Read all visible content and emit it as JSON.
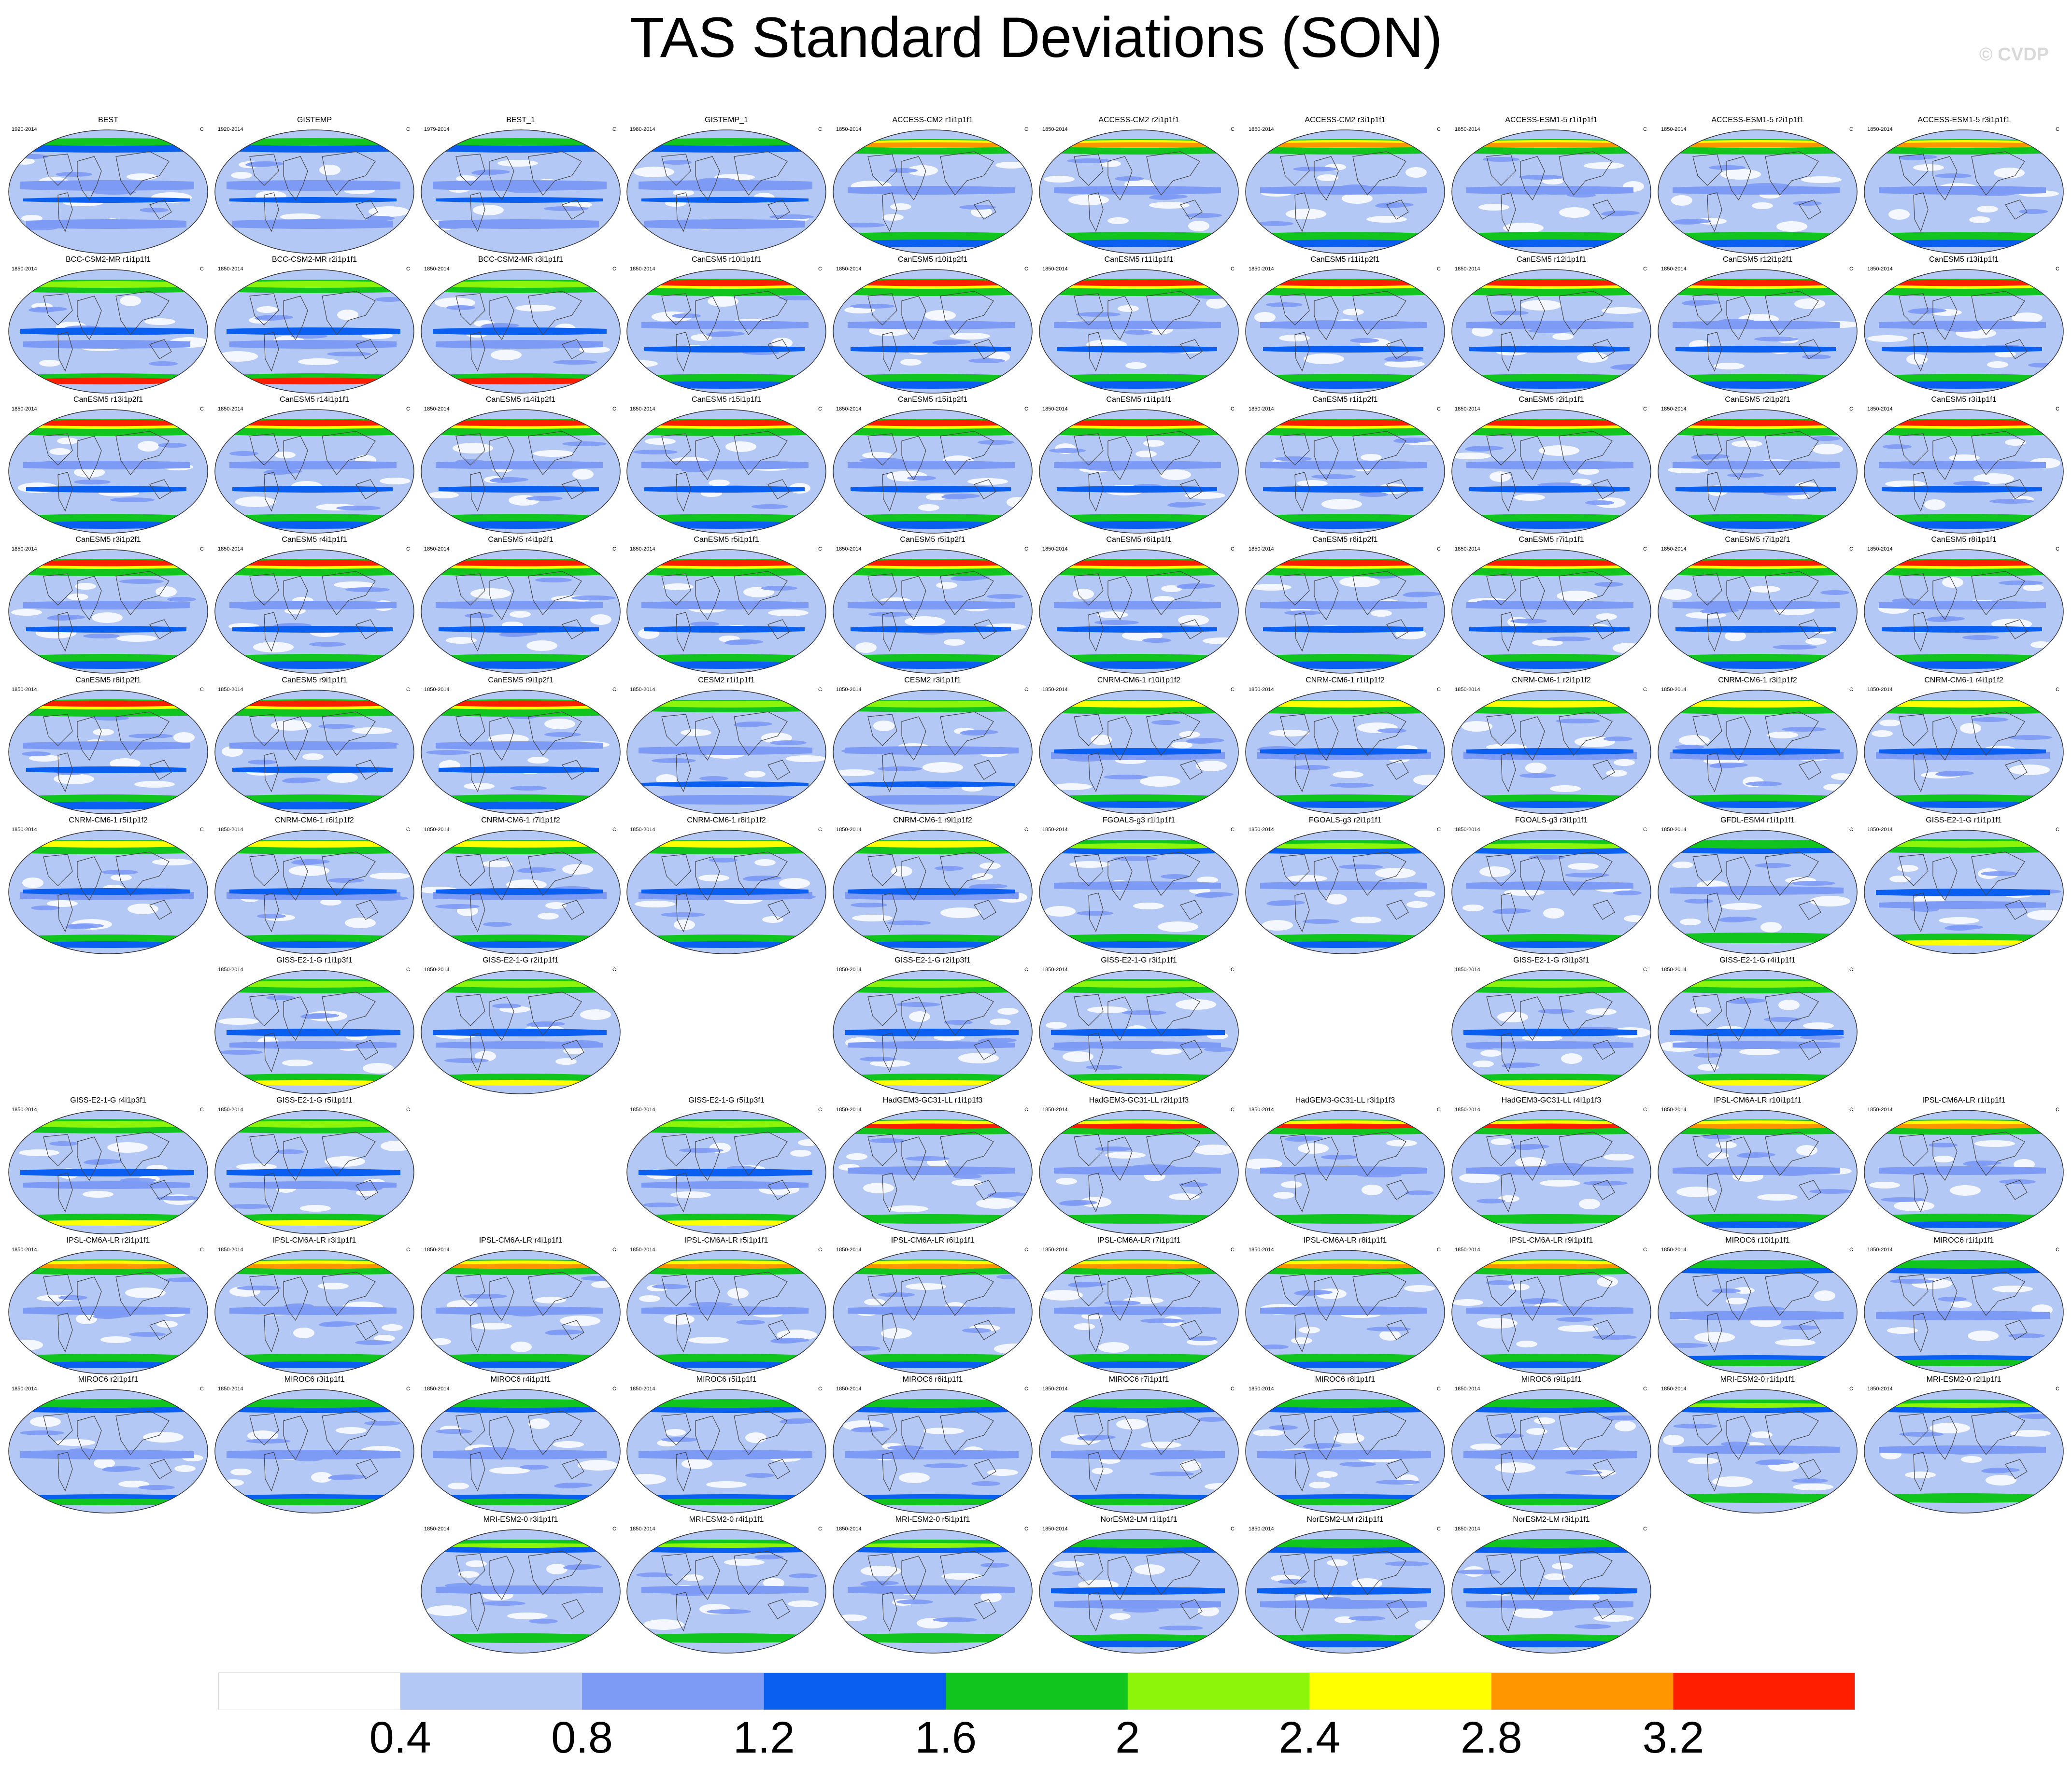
{
  "title": "TAS Standard Deviations (SON)",
  "copyright": "© CVDP",
  "chart_data": {
    "type": "heatmap",
    "title": "TAS Standard Deviations (SON)",
    "units": "C",
    "colorbar": {
      "levels": [
        0.4,
        0.8,
        1.2,
        1.6,
        2,
        2.4,
        2.8,
        3.2
      ],
      "labels": [
        "0.4",
        "0.8",
        "1.2",
        "1.6",
        "2",
        "2.4",
        "2.8",
        "3.2"
      ],
      "colors": [
        "#ffffff",
        "#b4c8f5",
        "#7d9af5",
        "#0a5ef0",
        "#12c41e",
        "#8cf50a",
        "#ffff00",
        "#ff9600",
        "#ff1e00"
      ]
    },
    "grid": [
      [
        "BEST|1920-2014|obs",
        "GISTEMP|1920-2014|obs",
        "BEST_1|1979-2014|obs",
        "GISTEMP_1|1980-2014|obs",
        "ACCESS-CM2 r1i1p1f1|1850-2014|acc",
        "ACCESS-CM2 r2i1p1f1|1850-2014|acc",
        "ACCESS-CM2 r3i1p1f1|1850-2014|acc",
        "ACCESS-ESM1-5 r1i1p1f1|1850-2014|acc",
        "ACCESS-ESM1-5 r2i1p1f1|1850-2014|acc",
        "ACCESS-ESM1-5 r3i1p1f1|1850-2014|acc"
      ],
      [
        "BCC-CSM2-MR r1i1p1f1|1850-2014|bcc",
        "BCC-CSM2-MR r2i1p1f1|1850-2014|bcc",
        "BCC-CSM2-MR r3i1p1f1|1850-2014|bcc",
        "CanESM5 r10i1p1f1|1850-2014|can",
        "CanESM5 r10i1p2f1|1850-2014|can",
        "CanESM5 r11i1p1f1|1850-2014|can",
        "CanESM5 r11i1p2f1|1850-2014|can",
        "CanESM5 r12i1p1f1|1850-2014|can",
        "CanESM5 r12i1p2f1|1850-2014|can",
        "CanESM5 r13i1p1f1|1850-2014|can"
      ],
      [
        "CanESM5 r13i1p2f1|1850-2014|can",
        "CanESM5 r14i1p1f1|1850-2014|can",
        "CanESM5 r14i1p2f1|1850-2014|can",
        "CanESM5 r15i1p1f1|1850-2014|can",
        "CanESM5 r15i1p2f1|1850-2014|can",
        "CanESM5 r1i1p1f1|1850-2014|can",
        "CanESM5 r1i1p2f1|1850-2014|can",
        "CanESM5 r2i1p1f1|1850-2014|can",
        "CanESM5 r2i1p2f1|1850-2014|can",
        "CanESM5 r3i1p1f1|1850-2014|can"
      ],
      [
        "CanESM5 r3i1p2f1|1850-2014|can",
        "CanESM5 r4i1p1f1|1850-2014|can",
        "CanESM5 r4i1p2f1|1850-2014|can",
        "CanESM5 r5i1p1f1|1850-2014|can",
        "CanESM5 r5i1p2f1|1850-2014|can",
        "CanESM5 r6i1p1f1|1850-2014|can",
        "CanESM5 r6i1p2f1|1850-2014|can",
        "CanESM5 r7i1p1f1|1850-2014|can",
        "CanESM5 r7i1p2f1|1850-2014|can",
        "CanESM5 r8i1p1f1|1850-2014|can"
      ],
      [
        "CanESM5 r8i1p2f1|1850-2014|can",
        "CanESM5 r9i1p1f1|1850-2014|can",
        "CanESM5 r9i1p2f1|1850-2014|can",
        "CESM2 r1i1p1f1|1850-2014|cesm",
        "CESM2 r3i1p1f1|1850-2014|cesm",
        "CNRM-CM6-1 r10i1p1f2|1850-2014|cnrm",
        "CNRM-CM6-1 r1i1p1f2|1850-2014|cnrm",
        "CNRM-CM6-1 r2i1p1f2|1850-2014|cnrm",
        "CNRM-CM6-1 r3i1p1f2|1850-2014|cnrm",
        "CNRM-CM6-1 r4i1p1f2|1850-2014|cnrm"
      ],
      [
        "CNRM-CM6-1 r5i1p1f2|1850-2014|cnrm",
        "CNRM-CM6-1 r6i1p1f2|1850-2014|cnrm",
        "CNRM-CM6-1 r7i1p1f2|1850-2014|cnrm",
        "CNRM-CM6-1 r8i1p1f2|1850-2014|cnrm",
        "CNRM-CM6-1 r9i1p1f2|1850-2014|cnrm",
        "FGOALS-g3 r1i1p1f1|1850-2014|fgoals",
        "FGOALS-g3 r2i1p1f1|1850-2014|fgoals",
        "FGOALS-g3 r3i1p1f1|1850-2014|fgoals",
        "GFDL-ESM4 r1i1p1f1|1850-2014|gfdl",
        "GISS-E2-1-G r1i1p1f1|1850-2014|giss"
      ],
      [
        "",
        "GISS-E2-1-G r1i1p3f1|1850-2014|giss",
        "GISS-E2-1-G r2i1p1f1|1850-2014|giss",
        "",
        "GISS-E2-1-G r2i1p3f1|1850-2014|giss",
        "GISS-E2-1-G r3i1p1f1|1850-2014|giss",
        "",
        "GISS-E2-1-G r3i1p3f1|1850-2014|giss",
        "GISS-E2-1-G r4i1p1f1|1850-2014|giss",
        ""
      ],
      [
        "GISS-E2-1-G r4i1p3f1|1850-2014|giss",
        "GISS-E2-1-G r5i1p1f1|1850-2014|giss",
        "",
        "GISS-E2-1-G r5i1p3f1|1850-2014|giss",
        "HadGEM3-GC31-LL r1i1p1f3|1850-2014|had",
        "HadGEM3-GC31-LL r2i1p1f3|1850-2014|had",
        "HadGEM3-GC31-LL r3i1p1f3|1850-2014|had",
        "HadGEM3-GC31-LL r4i1p1f3|1850-2014|had",
        "IPSL-CM6A-LR r10i1p1f1|1850-2014|ipsl",
        "IPSL-CM6A-LR r1i1p1f1|1850-2014|ipsl"
      ],
      [
        "IPSL-CM6A-LR r2i1p1f1|1850-2014|ipsl",
        "IPSL-CM6A-LR r3i1p1f1|1850-2014|ipsl",
        "IPSL-CM6A-LR r4i1p1f1|1850-2014|ipsl",
        "IPSL-CM6A-LR r5i1p1f1|1850-2014|ipsl",
        "IPSL-CM6A-LR r6i1p1f1|1850-2014|ipsl",
        "IPSL-CM6A-LR r7i1p1f1|1850-2014|ipsl",
        "IPSL-CM6A-LR r8i1p1f1|1850-2014|ipsl",
        "IPSL-CM6A-LR r9i1p1f1|1850-2014|ipsl",
        "MIROC6 r10i1p1f1|1850-2014|miroc",
        "MIROC6 r1i1p1f1|1850-2014|miroc"
      ],
      [
        "MIROC6 r2i1p1f1|1850-2014|miroc",
        "MIROC6 r3i1p1f1|1850-2014|miroc",
        "MIROC6 r4i1p1f1|1850-2014|miroc",
        "MIROC6 r5i1p1f1|1850-2014|miroc",
        "MIROC6 r6i1p1f1|1850-2014|miroc",
        "MIROC6 r7i1p1f1|1850-2014|miroc",
        "MIROC6 r8i1p1f1|1850-2014|miroc",
        "MIROC6 r9i1p1f1|1850-2014|miroc",
        "MRI-ESM2-0 r1i1p1f1|1850-2014|mri",
        "MRI-ESM2-0 r2i1p1f1|1850-2014|mri"
      ],
      [
        "",
        "",
        "MRI-ESM2-0 r3i1p1f1|1850-2014|mri",
        "MRI-ESM2-0 r4i1p1f1|1850-2014|mri",
        "MRI-ESM2-0 r5i1p1f1|1850-2014|mri",
        "NorESM2-LM r1i1p1f1|1850-2014|nor",
        "NorESM2-LM r2i1p1f1|1850-2014|nor",
        "NorESM2-LM r3i1p1f1|1850-2014|nor",
        "",
        ""
      ]
    ]
  }
}
